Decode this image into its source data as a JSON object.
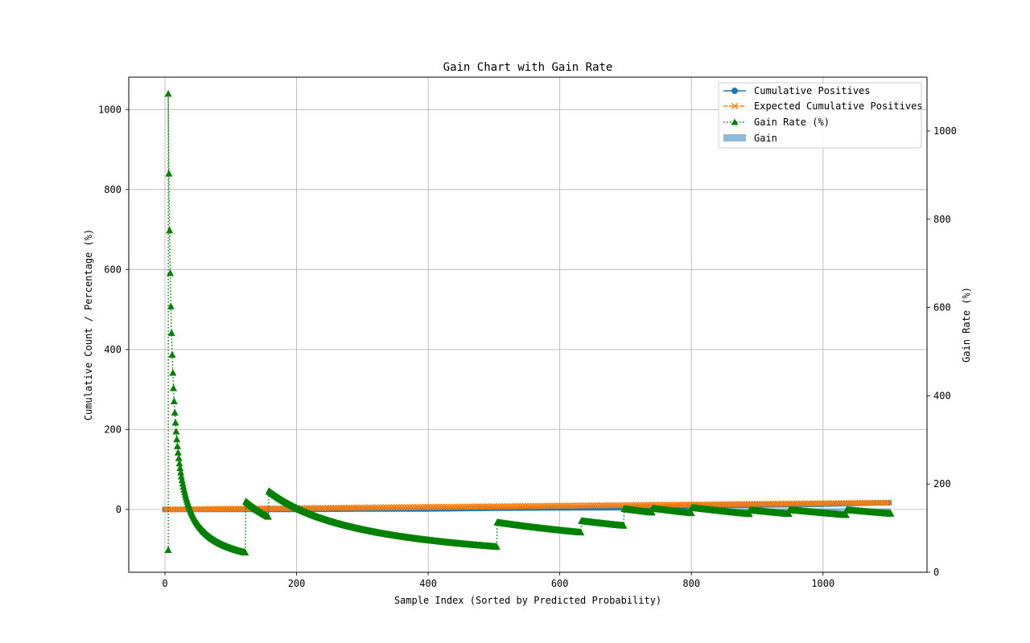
{
  "chart_data": {
    "type": "line",
    "title": "Gain Chart with Gain Rate",
    "xlabel": "Sample Index (Sorted by Predicted Probability)",
    "ylabel": "Cumulative Count / Percentage (%)",
    "y2label": "Gain Rate (%)",
    "xlim": [
      -55,
      1158
    ],
    "ylim": [
      -157,
      1081
    ],
    "y2lim": [
      0,
      1122
    ],
    "xticks": [
      0,
      200,
      400,
      600,
      800,
      1000
    ],
    "yticks": [
      0,
      200,
      400,
      600,
      800,
      1000
    ],
    "y2ticks": [
      0,
      200,
      400,
      600,
      800,
      1000
    ],
    "grid": true,
    "legend_position": "top-right",
    "n_samples": 1103,
    "series": [
      {
        "name": "Cumulative Positives",
        "axis": "left",
        "color": "#1f77b4",
        "marker": "circle",
        "linestyle": "solid",
        "x": [
          0,
          100,
          200,
          300,
          400,
          500,
          600,
          700,
          800,
          900,
          1000,
          1103
        ],
        "values": [
          0,
          0,
          0,
          1,
          1,
          3,
          4,
          5,
          9,
          11,
          13,
          17
        ]
      },
      {
        "name": "Expected Cumulative Positives",
        "axis": "left",
        "color": "#ff7f0e",
        "marker": "x",
        "linestyle": "dashed",
        "x": [
          0,
          1103
        ],
        "values": [
          0,
          17
        ]
      },
      {
        "name": "Gain Rate (%)",
        "axis": "right",
        "color": "#008000",
        "marker": "triangle",
        "linestyle": "dotted",
        "segments": [
          {
            "start": 5,
            "end": 122,
            "k": 5420,
            "drop_from": 50
          },
          {
            "start": 123,
            "end": 157,
            "k": 19700
          },
          {
            "start": 158,
            "end": 504,
            "k": 29000
          },
          {
            "start": 505,
            "end": 632,
            "k": 56900
          },
          {
            "start": 633,
            "end": 697,
            "k": 73400
          },
          {
            "start": 698,
            "end": 740,
            "k": 100000
          },
          {
            "start": 741,
            "end": 800,
            "k": 107000
          },
          {
            "start": 801,
            "end": 888,
            "k": 117000
          },
          {
            "start": 889,
            "end": 948,
            "k": 125000
          },
          {
            "start": 949,
            "end": 1035,
            "k": 134000
          },
          {
            "start": 1036,
            "end": 1103,
            "k": 146000
          }
        ]
      },
      {
        "name": "Gain",
        "axis": "left",
        "color": "#1f77b4",
        "type": "area",
        "x": [
          0,
          1103
        ],
        "values": [
          0,
          0
        ]
      }
    ]
  }
}
